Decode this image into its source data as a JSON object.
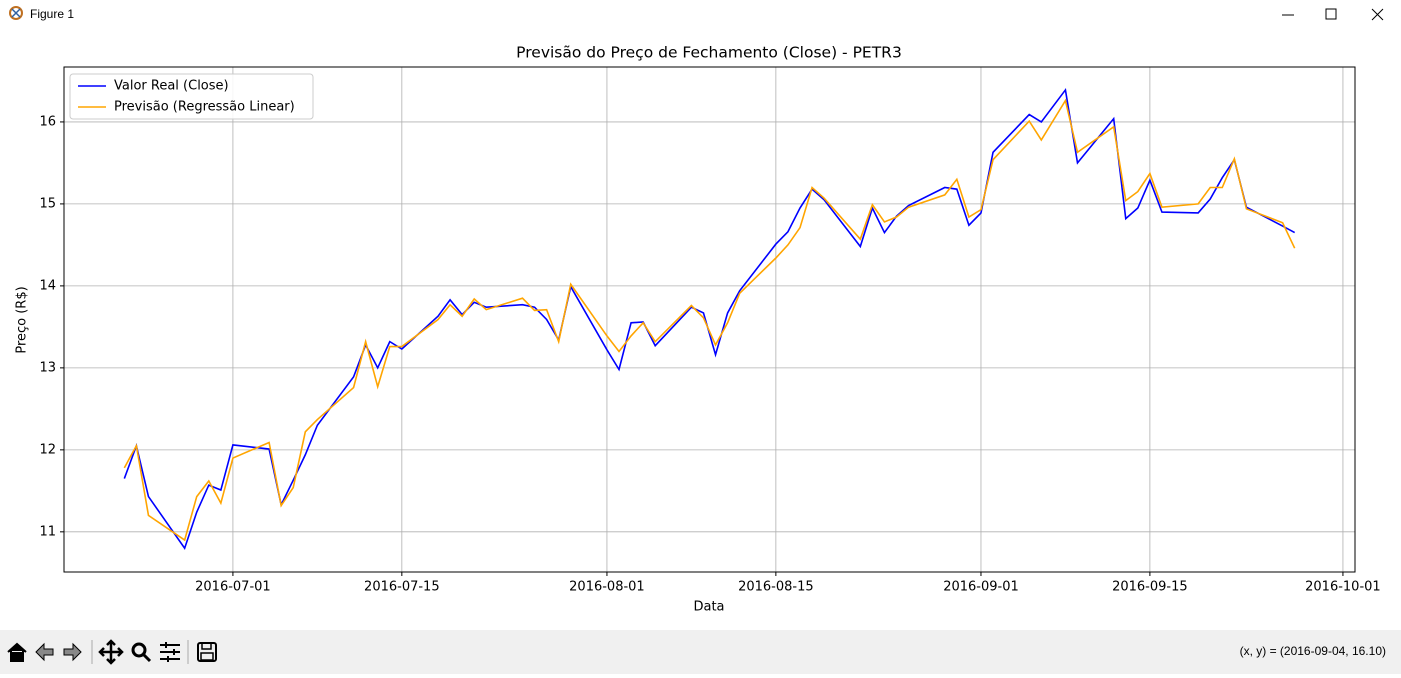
{
  "window": {
    "title": "Figure 1",
    "status": "(x, y) = (2016-09-04, 16.10)"
  },
  "chart_data": {
    "type": "line",
    "title": "Previsão do Preço de Fechamento (Close) - PETR3",
    "x_label": "Data",
    "y_label": "Preço (R$)",
    "x": [
      "2016-06-22",
      "2016-06-23",
      "2016-06-24",
      "2016-06-27",
      "2016-06-28",
      "2016-06-29",
      "2016-06-30",
      "2016-07-01",
      "2016-07-04",
      "2016-07-05",
      "2016-07-06",
      "2016-07-07",
      "2016-07-08",
      "2016-07-11",
      "2016-07-12",
      "2016-07-13",
      "2016-07-14",
      "2016-07-15",
      "2016-07-18",
      "2016-07-19",
      "2016-07-20",
      "2016-07-21",
      "2016-07-22",
      "2016-07-25",
      "2016-07-26",
      "2016-07-27",
      "2016-07-28",
      "2016-07-29",
      "2016-08-01",
      "2016-08-02",
      "2016-08-03",
      "2016-08-04",
      "2016-08-05",
      "2016-08-08",
      "2016-08-09",
      "2016-08-10",
      "2016-08-11",
      "2016-08-12",
      "2016-08-15",
      "2016-08-16",
      "2016-08-17",
      "2016-08-18",
      "2016-08-19",
      "2016-08-22",
      "2016-08-23",
      "2016-08-24",
      "2016-08-25",
      "2016-08-26",
      "2016-08-29",
      "2016-08-30",
      "2016-08-31",
      "2016-09-01",
      "2016-09-02",
      "2016-09-05",
      "2016-09-06",
      "2016-09-08",
      "2016-09-09",
      "2016-09-12",
      "2016-09-13",
      "2016-09-14",
      "2016-09-15",
      "2016-09-16",
      "2016-09-19",
      "2016-09-20",
      "2016-09-21",
      "2016-09-22",
      "2016-09-23",
      "2016-09-26",
      "2016-09-27"
    ],
    "series": [
      {
        "name": "Valor Real (Close)",
        "color": "#0000ff",
        "values": [
          11.65,
          12.05,
          11.43,
          10.8,
          11.24,
          11.57,
          11.51,
          12.06,
          12.01,
          11.33,
          11.63,
          11.94,
          12.3,
          12.89,
          13.28,
          13.0,
          13.32,
          13.23,
          13.63,
          13.83,
          13.65,
          13.8,
          13.74,
          13.77,
          13.74,
          13.59,
          13.34,
          13.99,
          13.22,
          12.98,
          13.55,
          13.56,
          13.27,
          13.74,
          13.67,
          13.16,
          13.67,
          13.94,
          14.51,
          14.66,
          14.95,
          15.18,
          15.05,
          14.48,
          14.95,
          14.65,
          14.85,
          14.98,
          15.2,
          15.18,
          14.74,
          14.89,
          15.63,
          16.09,
          16.0,
          16.39,
          15.5,
          16.04,
          14.82,
          14.95,
          15.29,
          14.9,
          14.89,
          15.06,
          15.32,
          15.54,
          14.96,
          14.73,
          14.65
        ]
      },
      {
        "name": "Previsão (Regressão Linear)",
        "color": "#ffa500",
        "values": [
          11.78,
          12.05,
          11.2,
          10.9,
          11.43,
          11.62,
          11.35,
          11.9,
          12.09,
          11.32,
          11.54,
          12.22,
          12.37,
          12.76,
          13.32,
          12.77,
          13.26,
          13.26,
          13.59,
          13.77,
          13.63,
          13.84,
          13.71,
          13.85,
          13.7,
          13.71,
          13.32,
          14.02,
          13.39,
          13.2,
          13.39,
          13.55,
          13.32,
          13.76,
          13.61,
          13.28,
          13.55,
          13.91,
          14.34,
          14.5,
          14.71,
          15.2,
          15.07,
          14.57,
          14.99,
          14.78,
          14.84,
          14.96,
          15.11,
          15.3,
          14.84,
          14.93,
          15.54,
          16.01,
          15.78,
          16.26,
          15.63,
          15.94,
          15.04,
          15.15,
          15.37,
          14.96,
          15.0,
          15.2,
          15.2,
          15.55,
          14.94,
          14.77,
          14.46
        ]
      }
    ],
    "xlim": [
      "2016-06-17",
      "2016-10-02"
    ],
    "ylim": [
      10.51,
      16.67
    ],
    "xticks": [
      "2016-07-01",
      "2016-07-15",
      "2016-08-01",
      "2016-08-15",
      "2016-09-01",
      "2016-09-15",
      "2016-10-01"
    ],
    "yticks": [
      11,
      12,
      13,
      14,
      15,
      16
    ],
    "grid": true,
    "legend": "upper left"
  }
}
